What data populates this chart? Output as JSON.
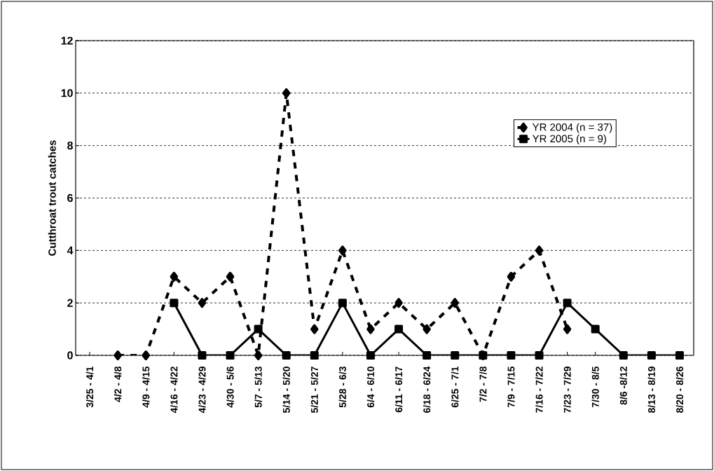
{
  "chart_data": {
    "type": "line",
    "ylabel": "Cutthroat trout catches",
    "categories": [
      "3/25 - 4/1",
      "4/2 - 4/8",
      "4/9 - 4/15",
      "4/16 - 4/22",
      "4/23 - 4/29",
      "4/30 - 5/6",
      "5/7 - 5/13",
      "5/14 - 5/20",
      "5/21 - 5/27",
      "5/28 - 6/3",
      "6/4 - 6/10",
      "6/11 - 6/17",
      "6/18 - 6/24",
      "6/25 - 7/1",
      "7/2 - 7/8",
      "7/9 - 7/15",
      "7/16 - 7/22",
      "7/23 - 7/29",
      "7/30 - 8/5",
      "8/6 -8/12",
      "8/13 - 8/19",
      "8/20 - 8/26"
    ],
    "series": [
      {
        "name": "YR 2004 (n = 37)",
        "color": "#000000",
        "marker": "diamond",
        "line_style": "dashed",
        "values": [
          null,
          0,
          0,
          3,
          2,
          3,
          0,
          10,
          1,
          4,
          1,
          2,
          1,
          2,
          0,
          3,
          4,
          1,
          null,
          null,
          null,
          null
        ]
      },
      {
        "name": "YR 2005 (n = 9)",
        "color": "#000000",
        "marker": "square",
        "line_style": "solid",
        "values": [
          null,
          null,
          null,
          2,
          0,
          0,
          1,
          0,
          0,
          2,
          0,
          1,
          0,
          0,
          0,
          0,
          0,
          2,
          1,
          0,
          0,
          0
        ]
      }
    ],
    "ylim": [
      0,
      12
    ],
    "yticks": [
      0,
      2,
      4,
      6,
      8,
      10,
      12
    ],
    "grid": "y",
    "legend": "right"
  }
}
